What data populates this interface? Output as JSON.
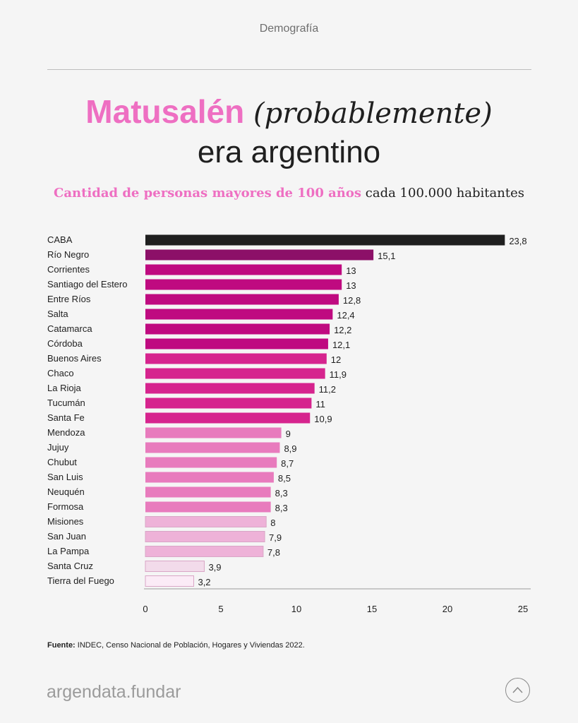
{
  "header": {
    "section": "Demografía"
  },
  "title": {
    "highlight": "Matusalén",
    "italic": "(probablemente)",
    "line2": "era argentino"
  },
  "subtitle": {
    "highlight": "Cantidad de personas mayores de 100 años",
    "rest": "cada 100.000 habitantes"
  },
  "chart_data": {
    "type": "bar",
    "orientation": "horizontal",
    "title": "Cantidad de personas mayores de 100 años cada 100.000 habitantes",
    "categories": [
      "CABA",
      "Río Negro",
      "Corrientes",
      "Santiago del Estero",
      "Entre Ríos",
      "Salta",
      "Catamarca",
      "Córdoba",
      "Buenos Aires",
      "Chaco",
      "La Rioja",
      "Tucumán",
      "Santa Fe",
      "Mendoza",
      "Jujuy",
      "Chubut",
      "San Luis",
      "Neuquén",
      "Formosa",
      "Misiones",
      "San Juan",
      "La Pampa",
      "Santa Cruz",
      "Tierra del Fuego"
    ],
    "values": [
      23.8,
      15.1,
      13,
      13,
      12.8,
      12.4,
      12.2,
      12.1,
      12,
      11.9,
      11.2,
      11,
      10.9,
      9,
      8.9,
      8.7,
      8.5,
      8.3,
      8.3,
      8,
      7.9,
      7.8,
      3.9,
      3.2
    ],
    "labels": [
      "23,8",
      "15,1",
      "13",
      "13",
      "12,8",
      "12,4",
      "12,2",
      "12,1",
      "12",
      "11,9",
      "11,2",
      "11",
      "10,9",
      "9",
      "8,9",
      "8,7",
      "8,5",
      "8,3",
      "8,3",
      "8",
      "7,9",
      "7,8",
      "3,9",
      "3,2"
    ],
    "colors": [
      "#1f1f1f",
      "#8c1068",
      "#bf0a80",
      "#bf0a80",
      "#bf0a80",
      "#bf0a80",
      "#bf0a80",
      "#bf0a80",
      "#d6248e",
      "#d6248e",
      "#d6248e",
      "#d6248e",
      "#d6248e",
      "#e87bbd",
      "#e87bbd",
      "#e87bbd",
      "#e87bbd",
      "#e87bbd",
      "#e87bbd",
      "#eeb2d8",
      "#eeb2d8",
      "#eeb2d8",
      "#f2dbea",
      "#fbebf6"
    ],
    "xticks": [
      0,
      5,
      10,
      15,
      20,
      25
    ],
    "xlim": [
      0,
      25
    ],
    "xlabel": "",
    "ylabel": "",
    "grid": false
  },
  "footer": {
    "source_label": "Fuente:",
    "source_text": " INDEC, Censo Nacional de Población, Hogares y Viviendas 2022.",
    "brand": "argendata.fundar"
  }
}
